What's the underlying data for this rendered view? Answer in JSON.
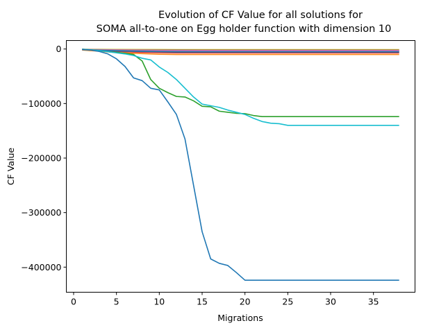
{
  "chart_data": {
    "type": "line",
    "title_lines": [
      "Evolution of CF Value for all solutions for",
      "SOMA all-to-one on Egg holder function with dimension 10"
    ],
    "xlabel": "Migrations",
    "ylabel": "CF Value",
    "xlim": [
      -0.85,
      39.85
    ],
    "ylim": [
      -446000,
      15500
    ],
    "xticks": [
      0,
      5,
      10,
      15,
      20,
      25,
      30,
      35
    ],
    "xtick_labels": [
      "0",
      "5",
      "10",
      "15",
      "20",
      "25",
      "30",
      "35"
    ],
    "yticks": [
      0,
      -100000,
      -200000,
      -300000,
      -400000
    ],
    "ytick_labels": [
      "0",
      "−100000",
      "−200000",
      "−300000",
      "−400000"
    ],
    "grid": false,
    "series": [
      {
        "color": "#bcbd22",
        "x": [
          1,
          5,
          10,
          15,
          20,
          25,
          30,
          38
        ],
        "y": [
          -500,
          -800,
          -1000,
          -1100,
          -1100,
          -1100,
          -1100,
          -1100
        ]
      },
      {
        "color": "#8c564b",
        "x": [
          1,
          5,
          10,
          15,
          20,
          25,
          30,
          38
        ],
        "y": [
          -800,
          -1500,
          -2000,
          -2200,
          -2200,
          -2200,
          -2200,
          -2200
        ]
      },
      {
        "color": "#e377c2",
        "x": [
          1,
          5,
          10,
          15,
          20,
          25,
          30,
          38
        ],
        "y": [
          -900,
          -1800,
          -2500,
          -2800,
          -2800,
          -2800,
          -2800,
          -2800
        ]
      },
      {
        "color": "#9467bd",
        "x": [
          1,
          5,
          10,
          15,
          20,
          25,
          30,
          38
        ],
        "y": [
          -1000,
          -2500,
          -3500,
          -4000,
          -4000,
          -4000,
          -4000,
          -4000
        ]
      },
      {
        "color": "#7f7f7f",
        "x": [
          1,
          5,
          10,
          15,
          20,
          25,
          30,
          38
        ],
        "y": [
          -1100,
          -3000,
          -4500,
          -5000,
          -5000,
          -5000,
          -5000,
          -5000
        ]
      },
      {
        "color": "#d62728",
        "x": [
          1,
          3,
          5,
          8,
          10,
          12,
          15,
          20,
          25,
          30,
          38
        ],
        "y": [
          -1500,
          -3000,
          -4500,
          -6000,
          -6500,
          -7000,
          -7000,
          -7000,
          -7000,
          -7000,
          -7000
        ]
      },
      {
        "color": "#ff7f0e",
        "x": [
          1,
          3,
          5,
          8,
          10,
          12,
          15,
          20,
          25,
          30,
          38
        ],
        "y": [
          -2000,
          -4000,
          -6500,
          -8500,
          -9500,
          -10000,
          -10000,
          -10000,
          -10000,
          -10000,
          -10000
        ]
      },
      {
        "color": "#1f77b4",
        "x": [
          1,
          3,
          5,
          8,
          10,
          12,
          15,
          20,
          25,
          30,
          38
        ],
        "y": [
          -1200,
          -2500,
          -3500,
          -4500,
          -5000,
          -5500,
          -5500,
          -5500,
          -5500,
          -5500,
          -5500
        ]
      },
      {
        "color": "#2ca02c",
        "x": [
          1,
          2,
          3,
          4,
          5,
          6,
          7,
          8,
          9,
          10,
          11,
          12,
          13,
          14,
          15,
          16,
          17,
          18,
          19,
          20,
          21,
          22,
          23,
          24,
          25,
          26,
          27,
          28,
          29,
          30,
          31,
          32,
          33,
          34,
          35,
          36,
          37,
          38
        ],
        "y": [
          -500,
          -1500,
          -3000,
          -5000,
          -6000,
          -8000,
          -10000,
          -22000,
          -56000,
          -72000,
          -80000,
          -87000,
          -88000,
          -95000,
          -105000,
          -106000,
          -114000,
          -116000,
          -118000,
          -118500,
          -122000,
          -124000,
          -124000,
          -124000,
          -124000,
          -124000,
          -124000,
          -124000,
          -124000,
          -124000,
          -124000,
          -124000,
          -124000,
          -124000,
          -124000,
          -124000,
          -124000,
          -124000
        ]
      },
      {
        "color": "#17becf",
        "x": [
          1,
          2,
          3,
          4,
          5,
          6,
          7,
          8,
          9,
          10,
          11,
          12,
          13,
          14,
          15,
          16,
          17,
          18,
          19,
          20,
          21,
          22,
          23,
          24,
          25,
          26,
          27,
          28,
          29,
          30,
          31,
          32,
          33,
          34,
          35,
          36,
          37,
          38
        ],
        "y": [
          -500,
          -1500,
          -3000,
          -5000,
          -7000,
          -9000,
          -12000,
          -17000,
          -20000,
          -33000,
          -43000,
          -56000,
          -72000,
          -88000,
          -101000,
          -104000,
          -107000,
          -112000,
          -116000,
          -120000,
          -127000,
          -133000,
          -136000,
          -137000,
          -140000,
          -140000,
          -140000,
          -140000,
          -140000,
          -140000,
          -140000,
          -140000,
          -140000,
          -140000,
          -140000,
          -140000,
          -140000,
          -140000
        ]
      },
      {
        "color": "#1f77b4",
        "x": [
          1,
          2,
          3,
          4,
          5,
          6,
          7,
          8,
          9,
          10,
          11,
          12,
          13,
          14,
          15,
          16,
          17,
          18,
          19,
          20,
          21,
          22,
          23,
          24,
          25,
          26,
          27,
          28,
          29,
          30,
          31,
          32,
          33,
          34,
          35,
          36,
          37,
          38
        ],
        "y": [
          -500,
          -2000,
          -4500,
          -9000,
          -18000,
          -32000,
          -53000,
          -58000,
          -72000,
          -75000,
          -97000,
          -120000,
          -165000,
          -250000,
          -335000,
          -385000,
          -393000,
          -397000,
          -410000,
          -424000,
          -424000,
          -424000,
          -424000,
          -424000,
          -424000,
          -424000,
          -424000,
          -424000,
          -424000,
          -424000,
          -424000,
          -424000,
          -424000,
          -424000,
          -424000,
          -424000,
          -424000,
          -424000
        ]
      }
    ]
  }
}
